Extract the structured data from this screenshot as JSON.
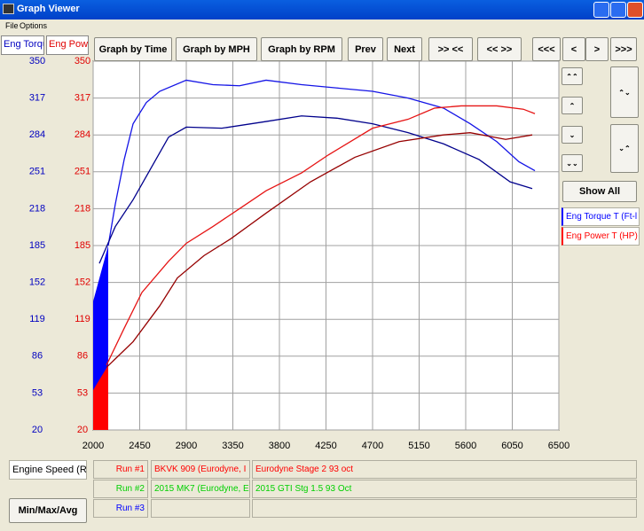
{
  "window": {
    "title": "Graph Viewer",
    "menu": [
      "File",
      "Options"
    ]
  },
  "buttons": [
    "Graph by Time",
    "Graph by MPH",
    "Graph by RPM",
    "Prev",
    "Next",
    ">> <<",
    "<< >>",
    "<<<",
    "<",
    ">",
    ">>>"
  ],
  "show_all": "Show All",
  "legend": [
    {
      "label": "Eng Torque T (Ft-l",
      "color": "#0000ff"
    },
    {
      "label": "Eng Power T (HP)",
      "color": "#ff0000"
    }
  ],
  "x_channel": "Engine Speed (RPI",
  "stats_button": "Min/Max/Avg",
  "runs": [
    {
      "label": "Run #1",
      "color": "#ff0000",
      "vehicle": "BKVK 909 (Eurodyne, I",
      "note": "Eurodyne Stage 2 93 oct"
    },
    {
      "label": "Run #2",
      "color": "#00d000",
      "vehicle": "2015 MK7 (Eurodyne, E",
      "note": "2015 GTI Stg 1.5 93 Oct"
    },
    {
      "label": "Run #3",
      "color": "#0000ff"
    }
  ],
  "chart_data": {
    "type": "line",
    "ylabel": "Eng Torqu",
    "y2label": "Eng Powe",
    "xlim": [
      2000,
      6500
    ],
    "xticks": [
      2000,
      2450,
      2900,
      3350,
      3800,
      4250,
      4700,
      5150,
      5600,
      6050,
      6500
    ],
    "ylim": [
      20,
      350
    ],
    "yticks": [
      20,
      53,
      86,
      119,
      152,
      185,
      218,
      251,
      284,
      317,
      350
    ],
    "y2lim": [
      20,
      350
    ],
    "y2ticks": [
      20,
      53,
      86,
      119,
      152,
      185,
      218,
      251,
      284,
      317,
      350
    ],
    "grid": true,
    "series": [
      {
        "color": "#1414e6",
        "x": [
          2146,
          2214,
          2300,
          2386,
          2514,
          2643,
          2900,
          3157,
          3414,
          3671,
          4014,
          4357,
          4700,
          5043,
          5386,
          5643,
          5900,
          6114,
          6269
        ],
        "values": [
          185,
          222,
          262,
          294,
          313,
          323,
          333,
          329,
          328,
          333,
          329,
          326,
          323,
          317,
          308,
          294,
          278,
          260,
          252
        ]
      },
      {
        "color": "#00008c",
        "x": [
          2060,
          2214,
          2386,
          2557,
          2729,
          2900,
          3243,
          3671,
          4014,
          4357,
          4700,
          5043,
          5386,
          5729,
          6029,
          6243
        ],
        "values": [
          169,
          202,
          226,
          254,
          282,
          291,
          290,
          296,
          301,
          299,
          294,
          286,
          276,
          262,
          242,
          236
        ]
      },
      {
        "color": "#e61414",
        "axis": "y2",
        "x": [
          2129,
          2300,
          2471,
          2729,
          2900,
          3157,
          3414,
          3671,
          4014,
          4271,
          4700,
          5043,
          5300,
          5557,
          5900,
          6157,
          6269
        ],
        "values": [
          78,
          111,
          143,
          171,
          187,
          202,
          218,
          234,
          250,
          266,
          290,
          298,
          308,
          310,
          310,
          307,
          303
        ]
      },
      {
        "color": "#960000",
        "axis": "y2",
        "x": [
          2129,
          2386,
          2643,
          2814,
          3071,
          3329,
          3671,
          4100,
          4529,
          4957,
          5386,
          5643,
          5986,
          6243
        ],
        "values": [
          76,
          99,
          131,
          156,
          176,
          191,
          214,
          242,
          264,
          278,
          284,
          286,
          280,
          284
        ]
      }
    ]
  }
}
